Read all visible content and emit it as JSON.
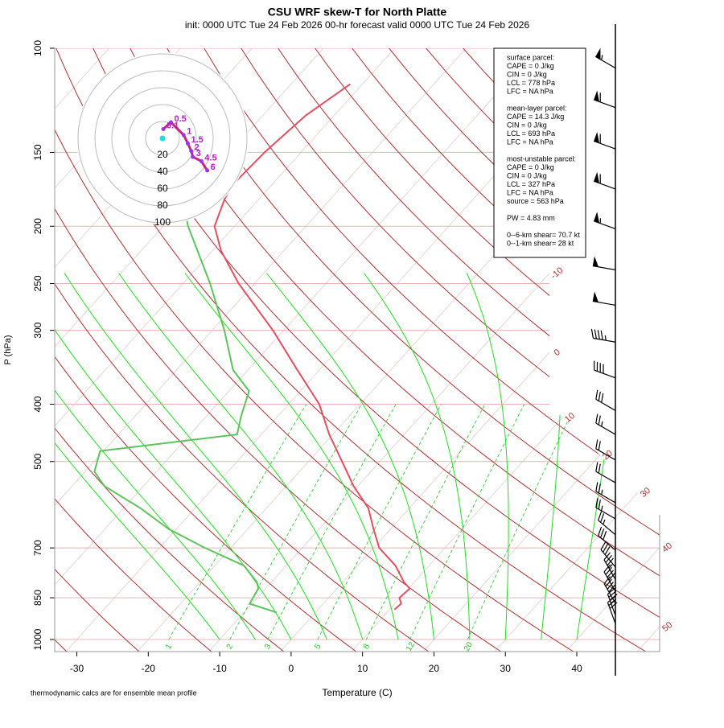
{
  "chart_data": {
    "type": "skewt",
    "title": "CSU WRF skew-T for North Platte",
    "subtitle": "init: 0000 UTC Tue 24 Feb 2026     00-hr forecast valid 0000 UTC Tue 24 Feb 2026",
    "xlabel": "Temperature (C)",
    "ylabel": "P (hPa)",
    "footnote": "thermodynamic calcs are for ensemble mean profile",
    "xlim": [
      -33.1,
      51.6
    ],
    "xticks": [
      -30,
      -20,
      -10,
      0,
      10,
      20,
      30,
      40
    ],
    "ylim": [
      1000,
      100
    ],
    "yticks": [
      100,
      150,
      200,
      250,
      300,
      400,
      500,
      700,
      850,
      1000
    ],
    "log_y": true,
    "isotherm_labels": [
      -10,
      0,
      10,
      20,
      30,
      40,
      50
    ],
    "mixing_ratio_labels": [
      1,
      2,
      3,
      5,
      8,
      12,
      20
    ],
    "temperature": {
      "color": "#e05060",
      "pressure": [
        890,
        870,
        850,
        820,
        800,
        750,
        700,
        650,
        600,
        550,
        500,
        450,
        400,
        350,
        300,
        250,
        220,
        200,
        180,
        170,
        150,
        130,
        115
      ],
      "values": [
        10.7,
        10.9,
        9.9,
        10.2,
        8.6,
        5.3,
        0.8,
        -2.4,
        -5.7,
        -10.6,
        -15.3,
        -20.5,
        -25.7,
        -33.1,
        -41.5,
        -52.2,
        -58.8,
        -62.8,
        -64.8,
        -65.5,
        -65.1,
        -64.0,
        -61.7
      ]
    },
    "dewpoint": {
      "color": "#5cc45c",
      "pressure": [
        900,
        870,
        850,
        820,
        800,
        750,
        700,
        650,
        600,
        550,
        520,
        480,
        450,
        420,
        380,
        350,
        300,
        250,
        200,
        180
      ],
      "values": [
        -5.4,
        -10.3,
        -10.6,
        -11.0,
        -12.0,
        -15.9,
        -23.6,
        -31.1,
        -37.6,
        -45.5,
        -48.7,
        -50.5,
        -33.4,
        -35.1,
        -37.2,
        -42.1,
        -48.3,
        -56.2,
        -66.5,
        -70.7
      ]
    },
    "hodograph": {
      "rings": [
        20,
        40,
        60,
        80,
        100
      ],
      "color": "#cc2277",
      "heights": [
        "0.1",
        "0.5",
        "1",
        "1.5",
        "2",
        "3",
        "4.5",
        "6"
      ],
      "u": [
        1,
        10,
        25,
        30,
        34,
        36,
        46,
        53
      ],
      "v": [
        11,
        19,
        4,
        -6,
        -15,
        -22,
        -27,
        -38
      ]
    },
    "wind": {
      "pressure": [
        108,
        126,
        148,
        173,
        202,
        237,
        272,
        314,
        361,
        410,
        450,
        497,
        543,
        587,
        625,
        665,
        706,
        754,
        791,
        829,
        868,
        910,
        940
      ],
      "speed": [
        55,
        60,
        60,
        60,
        55,
        50,
        50,
        45,
        40,
        30,
        25,
        20,
        20,
        25,
        25,
        25,
        30,
        30,
        35,
        40,
        40,
        35,
        30
      ],
      "direction": [
        300,
        290,
        290,
        290,
        290,
        280,
        280,
        280,
        290,
        300,
        300,
        300,
        300,
        300,
        300,
        310,
        310,
        320,
        330,
        330,
        330,
        340,
        340
      ]
    },
    "parcel_box": [
      [
        "surface parcel:",
        "CAPE = 0 J/kg",
        "CIN = 0 J/kg",
        "LCL = 778 hPa",
        "LFC = NA hPa"
      ],
      [
        "mean-layer parcel:",
        "CAPE = 14.3 J/kg",
        "CIN = 0 J/kg",
        "LCL = 693 hPa",
        "LFC = NA hPa"
      ],
      [
        "most-unstable parcel:",
        "CAPE = 0 J/kg",
        "CIN = 0 J/kg",
        "LCL = 327 hPa",
        "LFC = NA hPa",
        "source = 563 hPa"
      ],
      [
        "PW =  4.83 mm"
      ],
      [
        "0--6-km shear= 70.7 kt",
        "0--1-km shear= 28 kt"
      ]
    ]
  }
}
